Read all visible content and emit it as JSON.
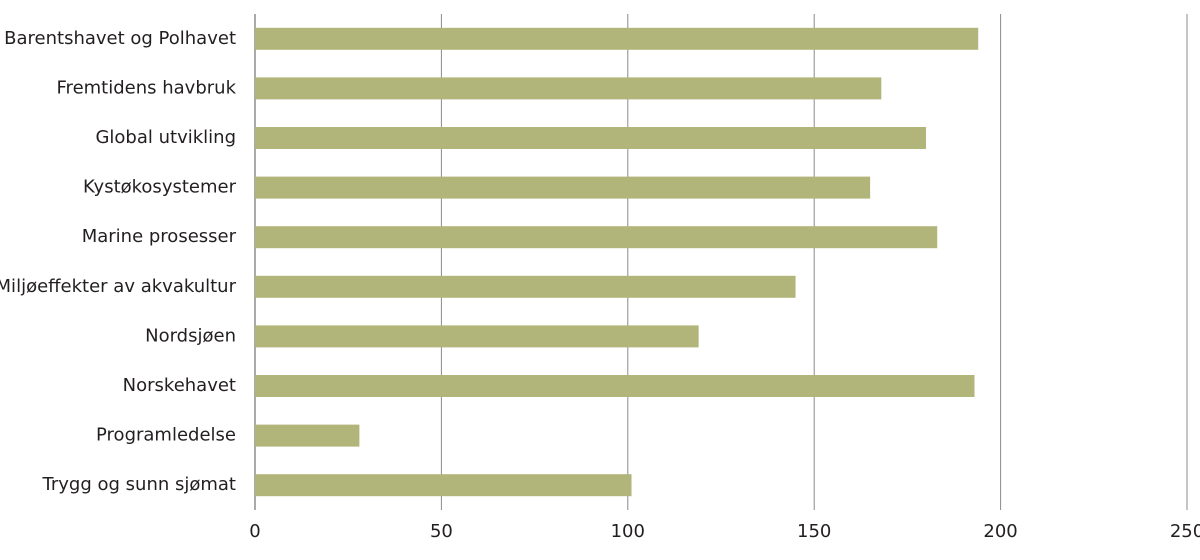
{
  "chart_data": {
    "type": "barh",
    "categories": [
      "Barentshavet og Polhavet",
      "Fremtidens havbruk",
      "Global utvikling",
      "Kystøkosystemer",
      "Marine prosesser",
      "Miljøeffekter av akvakultur",
      "Nordsjøen",
      "Norskehavet",
      "Programledelse",
      "Trygg og sunn sjømat"
    ],
    "values": [
      194,
      168,
      180,
      165,
      183,
      145,
      119,
      193,
      28,
      101
    ],
    "color": "#b1b57a",
    "xlim": [
      0,
      250
    ],
    "xticks": [
      0,
      50,
      100,
      150,
      200,
      250
    ],
    "grid": true
  }
}
